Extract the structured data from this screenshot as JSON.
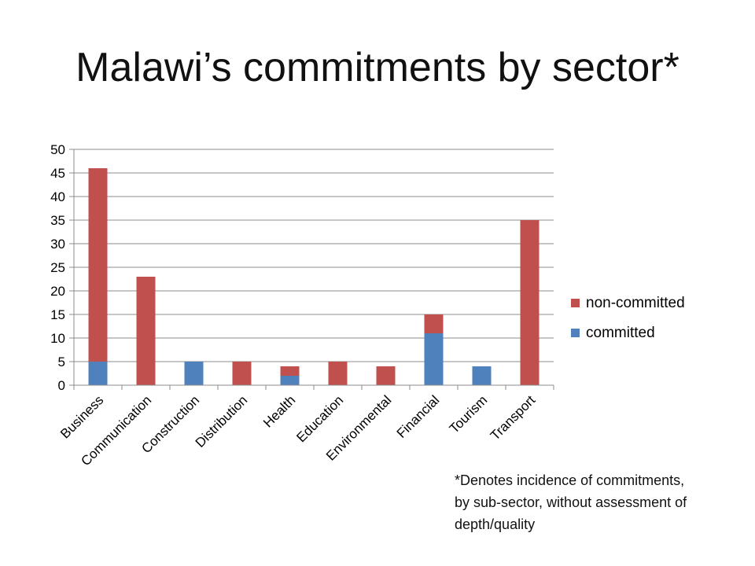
{
  "title": "Malawi’s commitments by sector*",
  "footnote": "*Denotes incidence of commitments, by sub-sector, without assessment of depth/quality",
  "chart_data": {
    "type": "bar",
    "stacked": true,
    "categories": [
      "Business",
      "Communication",
      "Construction",
      "Distribution",
      "Health",
      "Education",
      "Environmental",
      "Financial",
      "Tourism",
      "Transport"
    ],
    "series": [
      {
        "name": "committed",
        "color": "#4f81bd",
        "values": [
          5,
          0,
          5,
          0,
          2,
          0,
          0,
          11,
          4,
          0
        ]
      },
      {
        "name": "non-committed",
        "color": "#c0504d",
        "values": [
          41,
          23,
          0,
          5,
          2,
          5,
          4,
          4,
          0,
          35
        ]
      }
    ],
    "ylim": [
      0,
      50
    ],
    "yticks": [
      0,
      5,
      10,
      15,
      20,
      25,
      30,
      35,
      40,
      45,
      50
    ],
    "grid": true,
    "legend": {
      "position": "right",
      "order": [
        "non-committed",
        "committed"
      ]
    },
    "xlabel": "",
    "ylabel": ""
  }
}
